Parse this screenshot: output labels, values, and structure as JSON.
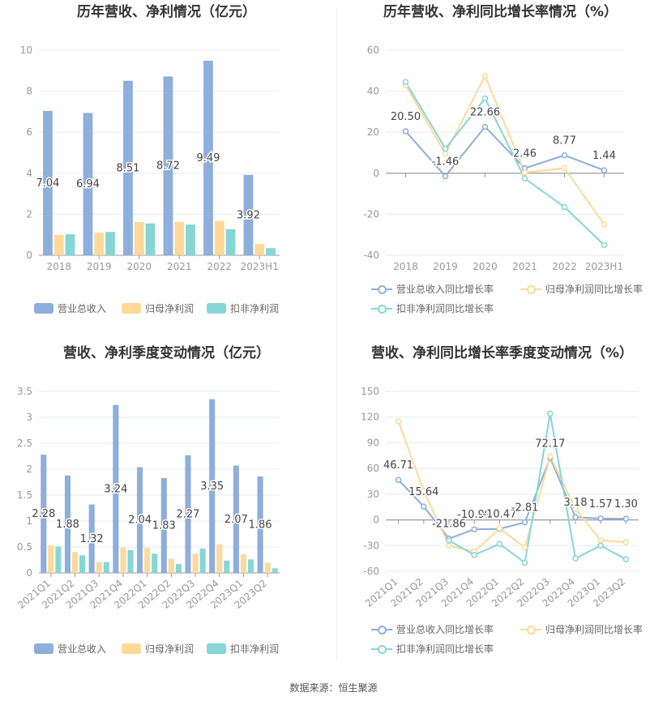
{
  "footer": "数据来源：恒生聚源",
  "colors": {
    "revenue": "#8eaedc",
    "net": "#ffd999",
    "deducted": "#86d6d6"
  },
  "chart_data": [
    {
      "type": "bar",
      "title": "历年营收、净利情况（亿元）",
      "categories": [
        "2018",
        "2019",
        "2020",
        "2021",
        "2022",
        "2023H1"
      ],
      "ylim": [
        0,
        10
      ],
      "yticks": [
        0,
        2,
        4,
        6,
        8,
        10
      ],
      "series": [
        {
          "name": "营业总收入",
          "values": [
            7.04,
            6.94,
            8.51,
            8.72,
            9.49,
            3.92
          ],
          "labels": true
        },
        {
          "name": "归母净利润",
          "values": [
            1.0,
            1.1,
            1.62,
            1.63,
            1.68,
            0.55
          ]
        },
        {
          "name": "扣非净利润",
          "values": [
            1.02,
            1.14,
            1.55,
            1.5,
            1.27,
            0.35
          ]
        }
      ]
    },
    {
      "type": "line",
      "title": "历年营收、净利同比增长率情况（%）",
      "categories": [
        "2018",
        "2019",
        "2020",
        "2021",
        "2022",
        "2023H1"
      ],
      "ylim": [
        -40,
        60
      ],
      "yticks": [
        -40,
        -20,
        0,
        20,
        40,
        60
      ],
      "series": [
        {
          "name": "营业总收入同比增长率",
          "values": [
            20.5,
            -1.46,
            22.66,
            2.46,
            8.77,
            1.44
          ],
          "labels": true
        },
        {
          "name": "归母净利润同比增长率",
          "values": [
            43,
            9.5,
            47.5,
            0.3,
            2.5,
            -25
          ]
        },
        {
          "name": "扣非净利润同比增长率",
          "values": [
            44.5,
            12,
            36.5,
            -2.5,
            -16.5,
            -35
          ]
        }
      ]
    },
    {
      "type": "bar",
      "title": "营收、净利季度变动情况（亿元）",
      "categories": [
        "2021Q1",
        "2021Q2",
        "2021Q3",
        "2021Q4",
        "2022Q1",
        "2022Q2",
        "2022Q3",
        "2022Q4",
        "2023Q1",
        "2023Q2"
      ],
      "ylim": [
        0,
        3.5
      ],
      "yticks": [
        0,
        0.5,
        1,
        1.5,
        2,
        2.5,
        3,
        3.5
      ],
      "series": [
        {
          "name": "营业总收入",
          "values": [
            2.28,
            1.88,
            1.32,
            3.24,
            2.04,
            1.83,
            2.27,
            3.35,
            2.07,
            1.86
          ],
          "labels": true
        },
        {
          "name": "归母净利润",
          "values": [
            0.53,
            0.4,
            0.21,
            0.49,
            0.48,
            0.27,
            0.37,
            0.55,
            0.36,
            0.2
          ]
        },
        {
          "name": "扣非净利润",
          "values": [
            0.51,
            0.34,
            0.21,
            0.44,
            0.37,
            0.17,
            0.47,
            0.24,
            0.26,
            0.09
          ]
        }
      ]
    },
    {
      "type": "line",
      "title": "营收、净利同比增长率季度变动情况（%）",
      "categories": [
        "2021Q1",
        "2021Q2",
        "2021Q3",
        "2021Q4",
        "2022Q1",
        "2022Q2",
        "2022Q3",
        "2022Q4",
        "2023Q1",
        "2023Q2"
      ],
      "ylim": [
        -60,
        150
      ],
      "yticks": [
        -60,
        -30,
        0,
        30,
        60,
        90,
        120,
        150
      ],
      "series": [
        {
          "name": "营业总收入同比增长率",
          "values": [
            46.71,
            15.64,
            -21.86,
            -10.99,
            -10.47,
            -2.81,
            72.17,
            3.18,
            1.57,
            1.3
          ],
          "labels": true
        },
        {
          "name": "归母净利润同比增长率",
          "values": [
            115,
            34,
            -30,
            -37,
            -10,
            -32,
            74,
            13,
            -24,
            -26
          ]
        },
        {
          "name": "扣非净利润同比增长率",
          "values": [
            null,
            null,
            -24,
            -41,
            -28,
            -50,
            124,
            -45,
            -30,
            -46
          ]
        }
      ]
    }
  ]
}
